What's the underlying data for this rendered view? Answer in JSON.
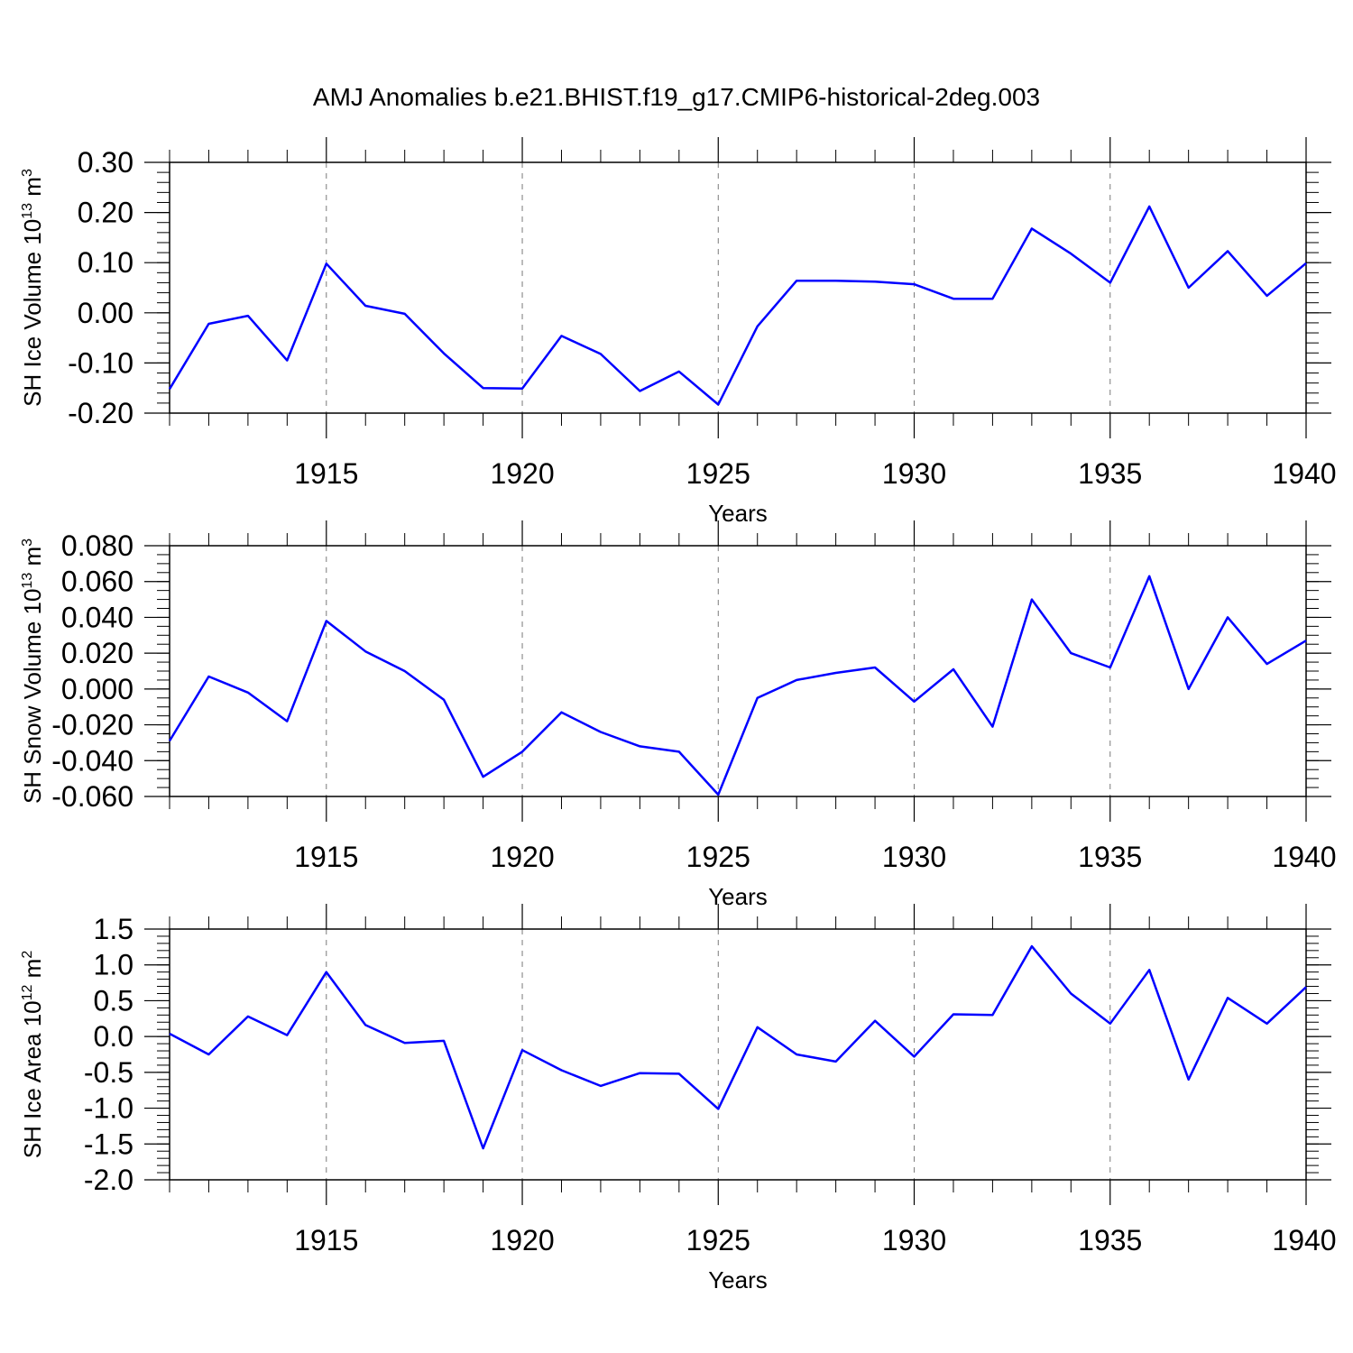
{
  "title": "AMJ Anomalies b.e21.BHIST.f19_g17.CMIP6-historical-2deg.003",
  "colors": {
    "line": "#0000ff",
    "axis": "#000000",
    "grid": "#7a7a7a"
  },
  "chart_data": [
    {
      "type": "line",
      "ylabel": "SH Ice Volume 10",
      "ylabel_exp": "13",
      "ylabel_unit": " m",
      "ylabel_unit_exp": "3",
      "xlabel": "Years",
      "xlim": [
        1911,
        1940
      ],
      "ylim": [
        -0.2,
        0.3
      ],
      "y_major_ticks": [
        -0.2,
        -0.1,
        0.0,
        0.1,
        0.2,
        0.3
      ],
      "y_tick_labels": [
        "-0.20",
        "-0.10",
        "0.00",
        "0.10",
        "0.20",
        "0.30"
      ],
      "y_minor_step": 0.02,
      "x_major_ticks": [
        1915,
        1920,
        1925,
        1930,
        1935,
        1940
      ],
      "x_tick_labels": [
        "1915",
        "1920",
        "1925",
        "1930",
        "1935",
        "1940"
      ],
      "vertical_grid": "dashed at major x ticks",
      "series": [
        {
          "x": [
            1911,
            1912,
            1913,
            1914,
            1915,
            1916,
            1917,
            1918,
            1919,
            1920,
            1921,
            1922,
            1923,
            1924,
            1925,
            1926,
            1927,
            1928,
            1929,
            1930,
            1931,
            1932,
            1933,
            1934,
            1935,
            1936,
            1937,
            1938,
            1939,
            1940
          ],
          "values": [
            -0.152,
            -0.022,
            -0.006,
            -0.095,
            0.098,
            0.014,
            -0.002,
            -0.081,
            -0.15,
            -0.151,
            -0.046,
            -0.082,
            -0.156,
            -0.117,
            -0.183,
            -0.027,
            0.064,
            0.064,
            0.062,
            0.057,
            0.028,
            0.028,
            0.168,
            0.118,
            0.06,
            0.212,
            0.05,
            0.123,
            0.034,
            0.099
          ]
        }
      ]
    },
    {
      "type": "line",
      "ylabel": "SH Snow Volume 10",
      "ylabel_exp": "13",
      "ylabel_unit": " m",
      "ylabel_unit_exp": "3",
      "xlabel": "Years",
      "xlim": [
        1911,
        1940
      ],
      "ylim": [
        -0.06,
        0.08
      ],
      "y_major_ticks": [
        -0.06,
        -0.04,
        -0.02,
        0.0,
        0.02,
        0.04,
        0.06,
        0.08
      ],
      "y_tick_labels": [
        "-0.060",
        "-0.040",
        "-0.020",
        "0.000",
        "0.020",
        "0.040",
        "0.060",
        "0.080"
      ],
      "y_minor_step": 0.005,
      "x_major_ticks": [
        1915,
        1920,
        1925,
        1930,
        1935,
        1940
      ],
      "x_tick_labels": [
        "1915",
        "1920",
        "1925",
        "1930",
        "1935",
        "1940"
      ],
      "vertical_grid": "dashed at major x ticks",
      "series": [
        {
          "x": [
            1911,
            1912,
            1913,
            1914,
            1915,
            1916,
            1917,
            1918,
            1919,
            1920,
            1921,
            1922,
            1923,
            1924,
            1925,
            1926,
            1927,
            1928,
            1929,
            1930,
            1931,
            1932,
            1933,
            1934,
            1935,
            1936,
            1937,
            1938,
            1939,
            1940
          ],
          "values": [
            -0.029,
            0.007,
            -0.002,
            -0.018,
            0.038,
            0.021,
            0.01,
            -0.006,
            -0.049,
            -0.035,
            -0.013,
            -0.024,
            -0.032,
            -0.035,
            -0.059,
            -0.005,
            0.005,
            0.009,
            0.012,
            -0.007,
            0.011,
            -0.021,
            0.05,
            0.02,
            0.012,
            0.063,
            0.0,
            0.04,
            0.014,
            0.027
          ]
        }
      ]
    },
    {
      "type": "line",
      "ylabel": "SH Ice Area 10",
      "ylabel_exp": "12",
      "ylabel_unit": " m",
      "ylabel_unit_exp": "2",
      "xlabel": "Years",
      "xlim": [
        1911,
        1940
      ],
      "ylim": [
        -2.0,
        1.5
      ],
      "y_major_ticks": [
        -2.0,
        -1.5,
        -1.0,
        -0.5,
        0.0,
        0.5,
        1.0,
        1.5
      ],
      "y_tick_labels": [
        "-2.0",
        "-1.5",
        "-1.0",
        "-0.5",
        "0.0",
        "0.5",
        "1.0",
        "1.5"
      ],
      "y_minor_step": 0.1,
      "x_major_ticks": [
        1915,
        1920,
        1925,
        1930,
        1935,
        1940
      ],
      "x_tick_labels": [
        "1915",
        "1920",
        "1925",
        "1930",
        "1935",
        "1940"
      ],
      "vertical_grid": "dashed at major x ticks",
      "series": [
        {
          "x": [
            1911,
            1912,
            1913,
            1914,
            1915,
            1916,
            1917,
            1918,
            1919,
            1920,
            1921,
            1922,
            1923,
            1924,
            1925,
            1926,
            1927,
            1928,
            1929,
            1930,
            1931,
            1932,
            1933,
            1934,
            1935,
            1936,
            1937,
            1938,
            1939,
            1940
          ],
          "values": [
            0.04,
            -0.25,
            0.28,
            0.02,
            0.9,
            0.16,
            -0.09,
            -0.06,
            -1.56,
            -0.19,
            -0.47,
            -0.69,
            -0.51,
            -0.52,
            -1.01,
            0.13,
            -0.25,
            -0.35,
            0.22,
            -0.28,
            0.31,
            0.3,
            1.26,
            0.6,
            0.18,
            0.93,
            -0.6,
            0.54,
            0.18,
            0.69
          ]
        }
      ]
    }
  ]
}
